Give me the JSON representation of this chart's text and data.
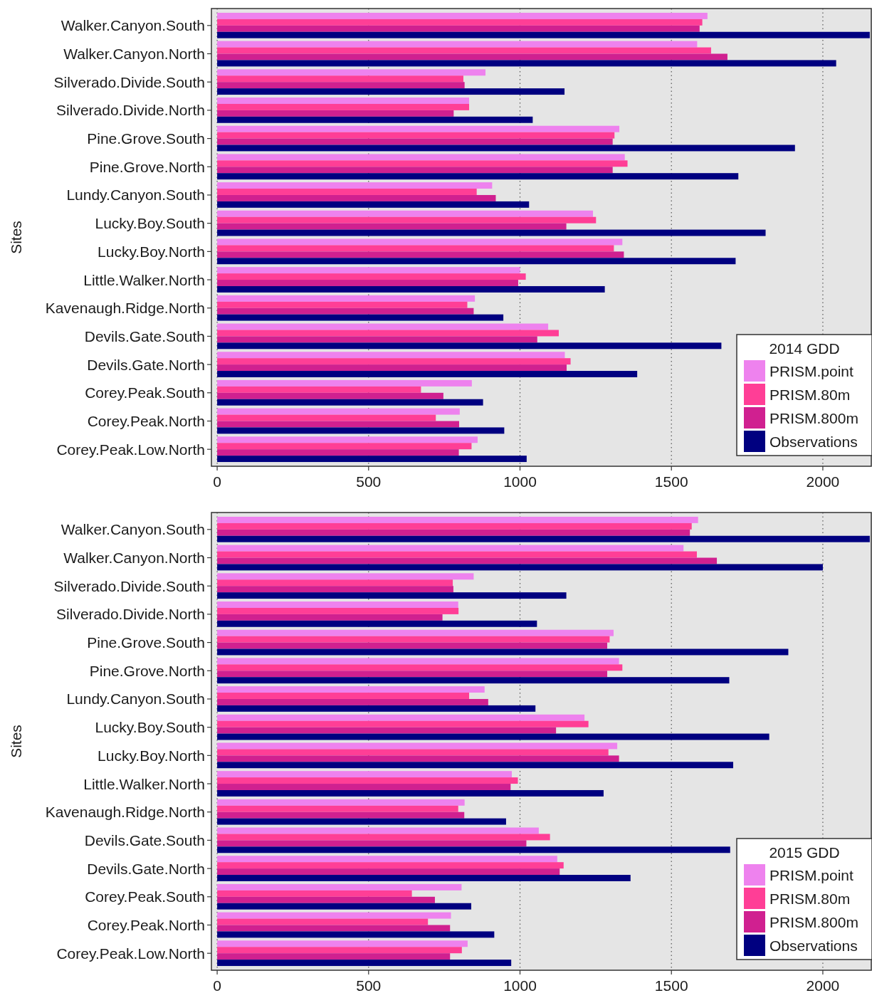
{
  "chart_data": [
    {
      "type": "bar",
      "orientation": "horizontal",
      "ylabel": "Sites",
      "legend_title": "2014 GDD",
      "legend": "bottom right",
      "grid": "x",
      "xlim": [
        -19,
        2160
      ],
      "xticks": [
        0,
        500,
        1000,
        1500,
        2000
      ],
      "categories": [
        "Walker.Canyon.South",
        "Walker.Canyon.North",
        "Silverado.Divide.South",
        "Silverado.Divide.North",
        "Pine.Grove.South",
        "Pine.Grove.North",
        "Lundy.Canyon.South",
        "Lucky.Boy.South",
        "Lucky.Boy.North",
        "Little.Walker.North",
        "Kavenaugh.Ridge.North",
        "Devils.Gate.South",
        "Devils.Gate.North",
        "Corey.Peak.South",
        "Corey.Peak.North",
        "Corey.Peak.Low.North"
      ],
      "series": [
        {
          "name": "PRISM.point",
          "color": "#ee82ee",
          "values": [
            1619,
            1585,
            886,
            832,
            1328,
            1346,
            908,
            1241,
            1338,
            1000,
            851,
            1093,
            1148,
            841,
            801,
            860
          ]
        },
        {
          "name": "PRISM.80m",
          "color": "#ff3e96",
          "values": [
            1602,
            1631,
            813,
            832,
            1312,
            1355,
            857,
            1251,
            1310,
            1019,
            826,
            1128,
            1167,
            673,
            722,
            840
          ]
        },
        {
          "name": "PRISM.800m",
          "color": "#d02090",
          "values": [
            1593,
            1685,
            817,
            781,
            1306,
            1306,
            920,
            1153,
            1343,
            994,
            847,
            1057,
            1154,
            747,
            799,
            798
          ]
        },
        {
          "name": "Observations",
          "color": "#000080",
          "values": [
            2155,
            2044,
            1147,
            1042,
            1908,
            1721,
            1030,
            1811,
            1712,
            1280,
            945,
            1665,
            1387,
            878,
            948,
            1022
          ]
        }
      ]
    },
    {
      "type": "bar",
      "orientation": "horizontal",
      "ylabel": "Sites",
      "legend_title": "2015 GDD",
      "legend": "bottom right",
      "grid": "x",
      "xlim": [
        -19,
        2160
      ],
      "xticks": [
        0,
        500,
        1000,
        1500,
        2000
      ],
      "categories": [
        "Walker.Canyon.South",
        "Walker.Canyon.North",
        "Silverado.Divide.South",
        "Silverado.Divide.North",
        "Pine.Grove.South",
        "Pine.Grove.North",
        "Lundy.Canyon.South",
        "Lucky.Boy.South",
        "Lucky.Boy.North",
        "Little.Walker.North",
        "Kavenaugh.Ridge.North",
        "Devils.Gate.South",
        "Devils.Gate.North",
        "Corey.Peak.South",
        "Corey.Peak.North",
        "Corey.Peak.Low.North"
      ],
      "series": [
        {
          "name": "PRISM.point",
          "color": "#ee82ee",
          "values": [
            1588,
            1540,
            847,
            796,
            1309,
            1327,
            883,
            1213,
            1321,
            973,
            817,
            1062,
            1123,
            807,
            772,
            827
          ]
        },
        {
          "name": "PRISM.80m",
          "color": "#ff3e96",
          "values": [
            1567,
            1584,
            778,
            797,
            1296,
            1338,
            832,
            1226,
            1292,
            993,
            796,
            1099,
            1144,
            643,
            696,
            808
          ]
        },
        {
          "name": "PRISM.800m",
          "color": "#d02090",
          "values": [
            1561,
            1650,
            780,
            744,
            1288,
            1288,
            895,
            1119,
            1327,
            969,
            816,
            1021,
            1131,
            719,
            769,
            769
          ]
        },
        {
          "name": "Observations",
          "color": "#000080",
          "values": [
            2155,
            2000,
            1153,
            1056,
            1886,
            1691,
            1051,
            1823,
            1704,
            1276,
            954,
            1694,
            1365,
            839,
            915,
            971
          ]
        }
      ]
    }
  ]
}
